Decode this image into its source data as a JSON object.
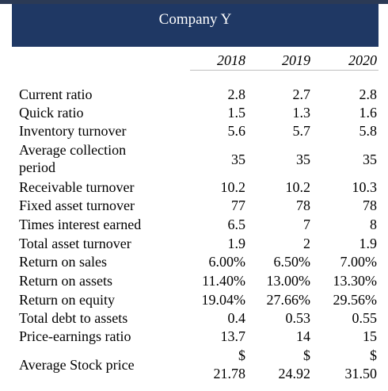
{
  "title": "Company Y",
  "years": [
    "2018",
    "2019",
    "2020"
  ],
  "rows": [
    {
      "label": "Current ratio",
      "values": [
        "2.8",
        "2.7",
        "2.8"
      ]
    },
    {
      "label": "Quick ratio",
      "values": [
        "1.5",
        "1.3",
        "1.6"
      ]
    },
    {
      "label": "Inventory turnover",
      "values": [
        "5.6",
        "5.7",
        "5.8"
      ]
    },
    {
      "label": "Average collection",
      "label2": "period",
      "values": [
        "35",
        "35",
        "35"
      ]
    },
    {
      "label": "Receivable turnover",
      "values": [
        "10.2",
        "10.2",
        "10.3"
      ]
    },
    {
      "label": "Fixed asset turnover",
      "values": [
        "77",
        "78",
        "78"
      ]
    },
    {
      "label": "Times interest earned",
      "values": [
        "6.5",
        "7",
        "8"
      ]
    },
    {
      "label": "Total asset turnover",
      "values": [
        "1.9",
        "2",
        "1.9"
      ]
    },
    {
      "label": "Return on sales",
      "values": [
        "6.00%",
        "6.50%",
        "7.00%"
      ]
    },
    {
      "label": "Return on assets",
      "values": [
        "11.40%",
        "13.00%",
        "13.30%"
      ]
    },
    {
      "label": "Return on equity",
      "values": [
        "19.04%",
        "27.66%",
        "29.56%"
      ]
    },
    {
      "label": "Total debt to assets",
      "values": [
        "0.4",
        "0.53",
        "0.55"
      ]
    },
    {
      "label": "Price-earnings ratio",
      "values": [
        "13.7",
        "14",
        "15"
      ]
    },
    {
      "label": "Average Stock price",
      "currency": "$",
      "values": [
        "21.78",
        "24.92",
        "31.50"
      ]
    }
  ]
}
